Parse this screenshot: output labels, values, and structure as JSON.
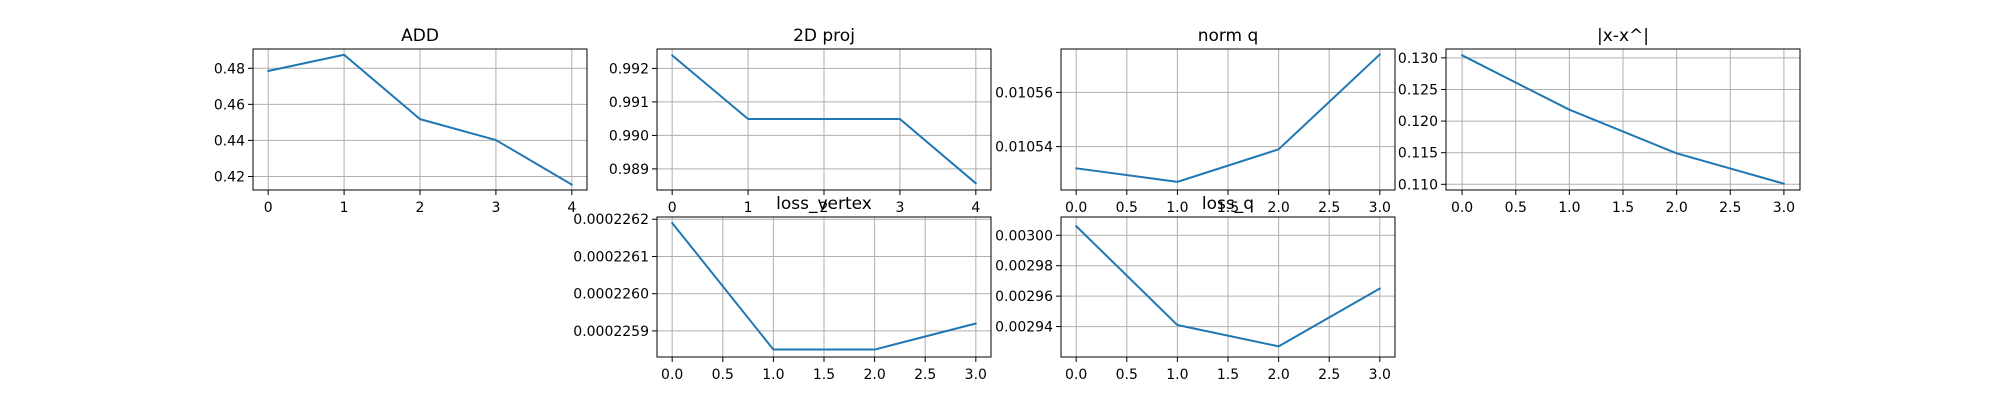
{
  "chart_data": [
    {
      "type": "line",
      "title": "ADD",
      "x": [
        0,
        1,
        2,
        3,
        4
      ],
      "y": [
        0.4785,
        0.4875,
        0.4518,
        0.4402,
        0.4155
      ],
      "xlim": [
        -0.2,
        4.2
      ],
      "ylim": [
        0.4125,
        0.4907
      ],
      "xticks": [
        0,
        1,
        2,
        3,
        4
      ],
      "xticklabels": [
        "0",
        "1",
        "2",
        "3",
        "4"
      ],
      "yticks": [
        0.42,
        0.44,
        0.46,
        0.48
      ],
      "yticklabels": [
        "0.42",
        "0.44",
        "0.46",
        "0.48"
      ],
      "grid": true
    },
    {
      "type": "line",
      "title": "2D proj",
      "x": [
        0,
        1,
        2,
        3,
        4
      ],
      "y": [
        0.99239,
        0.99049,
        0.99049,
        0.99049,
        0.98857
      ],
      "xlim": [
        -0.2,
        4.2
      ],
      "ylim": [
        0.98837,
        0.99258
      ],
      "xticks": [
        0,
        1,
        2,
        3,
        4
      ],
      "xticklabels": [
        "0",
        "1",
        "2",
        "3",
        "4"
      ],
      "yticks": [
        0.989,
        0.99,
        0.991,
        0.992
      ],
      "yticklabels": [
        "0.989",
        "0.990",
        "0.991",
        "0.992"
      ],
      "grid": true
    },
    {
      "type": "line",
      "title": "norm q",
      "x": [
        0,
        1,
        2,
        3
      ],
      "y": [
        0.010532,
        0.010527,
        0.010539,
        0.010574
      ],
      "xlim": [
        -0.15,
        3.15
      ],
      "ylim": [
        0.010524,
        0.010576
      ],
      "xticks": [
        0,
        0.5,
        1,
        1.5,
        2,
        2.5,
        3
      ],
      "xticklabels": [
        "0.0",
        "0.5",
        "1.0",
        "1.5",
        "2.0",
        "2.5",
        "3.0"
      ],
      "yticks": [
        0.01054,
        0.01056
      ],
      "yticklabels": [
        "0.01054",
        "0.01056"
      ],
      "grid": true
    },
    {
      "type": "line",
      "title": "|x-x^|",
      "x": [
        0,
        1,
        2,
        3
      ],
      "y": [
        0.1304,
        0.1218,
        0.1149,
        0.1101
      ],
      "xlim": [
        -0.15,
        3.15
      ],
      "ylim": [
        0.1091,
        0.1314
      ],
      "xticks": [
        0,
        0.5,
        1,
        1.5,
        2,
        2.5,
        3
      ],
      "xticklabels": [
        "0.0",
        "0.5",
        "1.0",
        "1.5",
        "2.0",
        "2.5",
        "3.0"
      ],
      "yticks": [
        0.11,
        0.115,
        0.12,
        0.125,
        0.13
      ],
      "yticklabels": [
        "0.110",
        "0.115",
        "0.120",
        "0.125",
        "0.130"
      ],
      "grid": true
    },
    {
      "type": "line",
      "title": "loss_vertex",
      "x": [
        0,
        1,
        2,
        3
      ],
      "y": [
        0.00022619,
        0.00022585,
        0.00022585,
        0.00022592
      ],
      "xlim": [
        -0.15,
        3.15
      ],
      "ylim": [
        0.00022583,
        0.000226206
      ],
      "xticks": [
        0,
        0.5,
        1,
        1.5,
        2,
        2.5,
        3
      ],
      "xticklabels": [
        "0.0",
        "0.5",
        "1.0",
        "1.5",
        "2.0",
        "2.5",
        "3.0"
      ],
      "yticks": [
        0.0002259,
        0.000226,
        0.0002261,
        0.0002262
      ],
      "yticklabels": [
        "0.0002259",
        "0.0002260",
        "0.0002261",
        "0.0002262"
      ],
      "grid": true
    },
    {
      "type": "line",
      "title": "loss_q",
      "x": [
        0,
        1,
        2,
        3
      ],
      "y": [
        0.003006,
        0.002941,
        0.002927,
        0.002965
      ],
      "xlim": [
        -0.15,
        3.15
      ],
      "ylim": [
        0.00292,
        0.003012
      ],
      "xticks": [
        0,
        0.5,
        1,
        1.5,
        2,
        2.5,
        3
      ],
      "xticklabels": [
        "0.0",
        "0.5",
        "1.0",
        "1.5",
        "2.0",
        "2.5",
        "3.0"
      ],
      "yticks": [
        0.00294,
        0.00296,
        0.00298,
        0.003
      ],
      "yticklabels": [
        "0.00294",
        "0.00296",
        "0.00298",
        "0.00300"
      ],
      "grid": true
    }
  ],
  "colors": {
    "line": "#1f77b4",
    "grid": "#b0b0b0",
    "axes": "#000000"
  }
}
